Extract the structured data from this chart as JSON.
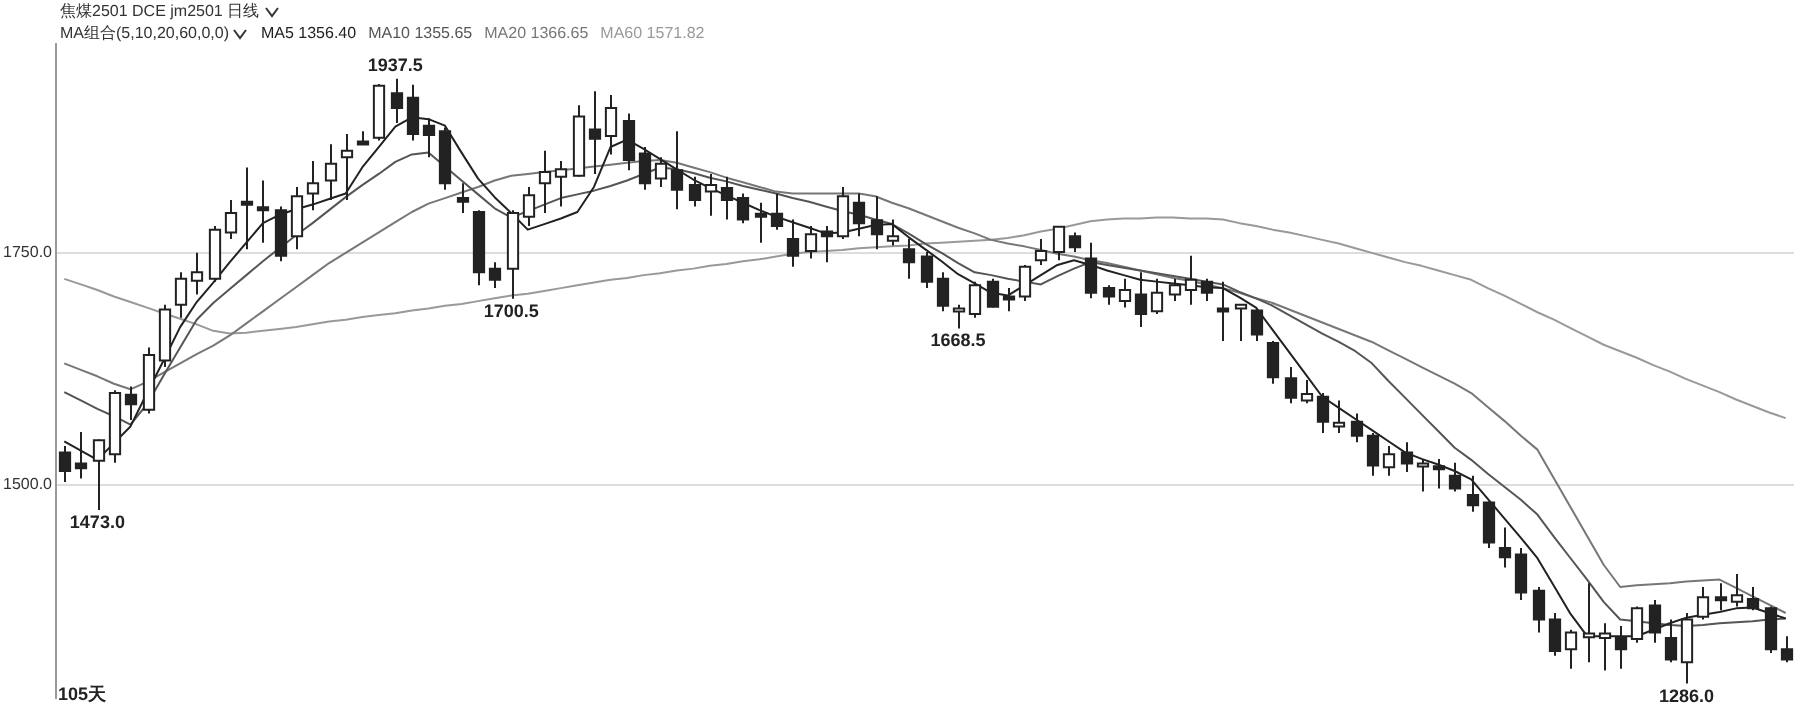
{
  "chart_data": {
    "type": "candlestick",
    "title": "焦煤2501 DCE jm2501 日线",
    "subtitle": "MA组合(5,10,20,60,0,0)",
    "categories": [
      null,
      null,
      null,
      null,
      null,
      null,
      null,
      null,
      null,
      null,
      null,
      null,
      null,
      null,
      null,
      null,
      null,
      null,
      null,
      null,
      null,
      null,
      null,
      null,
      null,
      null,
      null,
      null,
      null,
      null,
      null,
      null,
      null,
      null,
      null,
      null,
      null,
      null,
      null,
      null,
      null,
      null,
      null,
      null,
      null,
      null,
      null,
      null,
      null,
      null,
      null,
      null,
      null,
      null,
      null,
      null,
      null,
      null,
      null,
      null,
      null,
      null,
      null,
      null,
      null,
      null,
      null,
      null,
      null,
      null,
      null,
      null,
      null,
      null,
      null,
      null,
      null,
      null,
      null,
      null,
      null,
      null,
      null,
      null,
      null,
      null,
      null,
      null,
      null,
      null,
      null,
      null,
      null,
      null,
      null,
      null,
      null,
      null,
      null,
      null,
      null,
      null,
      null,
      null,
      null
    ],
    "ohlc": [
      [
        1535,
        1542,
        1503,
        1515
      ],
      [
        1523,
        1557,
        1507,
        1518
      ],
      [
        1526,
        1549,
        1473,
        1548
      ],
      [
        1533,
        1602,
        1524,
        1599
      ],
      [
        1597,
        1606,
        1570,
        1587
      ],
      [
        1581,
        1648,
        1577,
        1640
      ],
      [
        1634,
        1694,
        1627,
        1689
      ],
      [
        1694,
        1729,
        1680,
        1722
      ],
      [
        1720,
        1750,
        1705,
        1729
      ],
      [
        1722,
        1779,
        1719,
        1775
      ],
      [
        1772,
        1807,
        1765,
        1793
      ],
      [
        1805,
        1842,
        1754,
        1802
      ],
      [
        1799,
        1828,
        1761,
        1797
      ],
      [
        1796,
        1800,
        1741,
        1747
      ],
      [
        1768,
        1821,
        1754,
        1811
      ],
      [
        1814,
        1849,
        1796,
        1825
      ],
      [
        1828,
        1867,
        1807,
        1846
      ],
      [
        1853,
        1878,
        1807,
        1860
      ],
      [
        1870,
        1881,
        1867,
        1868
      ],
      [
        1874,
        1932,
        1871,
        1930
      ],
      [
        1922,
        1937.5,
        1890,
        1906
      ],
      [
        1917,
        1931,
        1871,
        1878
      ],
      [
        1887,
        1895,
        1853,
        1877
      ],
      [
        1881,
        1885,
        1818,
        1825
      ],
      [
        1809,
        1825,
        1793,
        1805
      ],
      [
        1794,
        1796,
        1715,
        1729
      ],
      [
        1733,
        1740,
        1712,
        1721
      ],
      [
        1733,
        1796,
        1700.5,
        1793
      ],
      [
        1789,
        1821,
        1779,
        1812
      ],
      [
        1825,
        1860,
        1793,
        1837
      ],
      [
        1832,
        1849,
        1800,
        1840
      ],
      [
        1833,
        1909,
        1832,
        1897
      ],
      [
        1883,
        1924,
        1835,
        1873
      ],
      [
        1876,
        1920,
        1856,
        1906
      ],
      [
        1892,
        1900,
        1839,
        1850
      ],
      [
        1857,
        1864,
        1818,
        1825
      ],
      [
        1830,
        1853,
        1821,
        1846
      ],
      [
        1839,
        1881,
        1797,
        1818
      ],
      [
        1823,
        1832,
        1800,
        1807
      ],
      [
        1816,
        1835,
        1790,
        1823
      ],
      [
        1820,
        1832,
        1786,
        1807
      ],
      [
        1809,
        1814,
        1782,
        1786
      ],
      [
        1792,
        1804,
        1761,
        1789
      ],
      [
        1792,
        1814,
        1775,
        1779
      ],
      [
        1765,
        1786,
        1735,
        1747
      ],
      [
        1752,
        1779,
        1744,
        1770
      ],
      [
        1773,
        1779,
        1740,
        1768
      ],
      [
        1768,
        1821,
        1765,
        1811
      ],
      [
        1804,
        1814,
        1768,
        1782
      ],
      [
        1785,
        1811,
        1754,
        1770
      ],
      [
        1763,
        1786,
        1758,
        1768
      ],
      [
        1754,
        1765,
        1722,
        1740
      ],
      [
        1746,
        1751,
        1712,
        1719
      ],
      [
        1722,
        1729,
        1687,
        1693
      ],
      [
        1687,
        1694,
        1668.5,
        1690
      ],
      [
        1684,
        1719,
        1680,
        1715
      ],
      [
        1719,
        1722,
        1691,
        1692
      ],
      [
        1703,
        1712,
        1687,
        1701
      ],
      [
        1703,
        1737,
        1698,
        1735
      ],
      [
        1742,
        1765,
        1737,
        1752
      ],
      [
        1751,
        1779,
        1742,
        1778
      ],
      [
        1768,
        1772,
        1751,
        1756
      ],
      [
        1744,
        1761,
        1701,
        1707
      ],
      [
        1712,
        1715,
        1694,
        1703
      ],
      [
        1698,
        1722,
        1691,
        1710
      ],
      [
        1705,
        1729,
        1670,
        1684
      ],
      [
        1687,
        1722,
        1684,
        1707
      ],
      [
        1705,
        1722,
        1698,
        1715
      ],
      [
        1710,
        1747,
        1694,
        1721
      ],
      [
        1719,
        1722,
        1698,
        1707
      ],
      [
        1690,
        1719,
        1655,
        1688
      ],
      [
        1690,
        1694,
        1655,
        1694
      ],
      [
        1688,
        1690,
        1655,
        1662
      ],
      [
        1653,
        1655,
        1609,
        1616
      ],
      [
        1615,
        1627,
        1588,
        1594
      ],
      [
        1591,
        1613,
        1588,
        1598
      ],
      [
        1595,
        1599,
        1556,
        1568
      ],
      [
        1563,
        1591,
        1556,
        1567
      ],
      [
        1568,
        1577,
        1546,
        1553
      ],
      [
        1553,
        1556,
        1510,
        1521
      ],
      [
        1519,
        1542,
        1510,
        1533
      ],
      [
        1535,
        1546,
        1514,
        1523
      ],
      [
        1520,
        1528,
        1493,
        1523
      ],
      [
        1520,
        1528,
        1496,
        1517
      ],
      [
        1510,
        1524,
        1493,
        1496
      ],
      [
        1489,
        1510,
        1471,
        1478
      ],
      [
        1481,
        1482,
        1432,
        1438
      ],
      [
        1432,
        1454,
        1411,
        1422
      ],
      [
        1425,
        1432,
        1376,
        1384
      ],
      [
        1386,
        1390,
        1341,
        1355
      ],
      [
        1355,
        1362,
        1316,
        1321
      ],
      [
        1323,
        1344,
        1302,
        1341
      ],
      [
        1336,
        1394,
        1309,
        1340
      ],
      [
        1335,
        1351,
        1300,
        1340
      ],
      [
        1335,
        1348,
        1302,
        1323
      ],
      [
        1334,
        1369,
        1330,
        1367
      ],
      [
        1370,
        1376,
        1330,
        1341
      ],
      [
        1335,
        1355,
        1309,
        1312
      ],
      [
        1309,
        1362,
        1286,
        1355
      ],
      [
        1358,
        1390,
        1355,
        1379
      ],
      [
        1379,
        1394,
        1365,
        1377
      ],
      [
        1374,
        1404,
        1369,
        1381
      ],
      [
        1377,
        1390,
        1365,
        1367
      ],
      [
        1367,
        1369,
        1319,
        1323
      ],
      [
        1323,
        1337,
        1309,
        1312
      ]
    ],
    "series": [
      {
        "name": "MA5 1356.40",
        "type": "line",
        "color": "#222222",
        "values": [
          1547,
          1537,
          1527,
          1545,
          1563,
          1599,
          1634,
          1670,
          1697,
          1718,
          1740,
          1761,
          1782,
          1791,
          1797,
          1802,
          1808,
          1814,
          1842,
          1864,
          1886,
          1896,
          1894,
          1887,
          1858,
          1830,
          1810,
          1793,
          1775,
          1781,
          1787,
          1794,
          1821,
          1864,
          1872,
          1862,
          1851,
          1840,
          1829,
          1820,
          1812,
          1804,
          1796,
          1789,
          1783,
          1777,
          1771,
          1772,
          1776,
          1780,
          1781,
          1767,
          1754,
          1741,
          1727,
          1717,
          1707,
          1704,
          1715,
          1726,
          1737,
          1742,
          1737,
          1731,
          1726,
          1721,
          1719,
          1717,
          1715,
          1713,
          1712,
          1702,
          1691,
          1667,
          1643,
          1619,
          1595,
          1583,
          1571,
          1559,
          1547,
          1535,
          1528,
          1522,
          1515,
          1506,
          1485,
          1464,
          1443,
          1421,
          1391,
          1361,
          1337,
          1337,
          1337,
          1337,
          1344,
          1351,
          1357,
          1360,
          1363,
          1367,
          1368,
          1362,
          1356
        ]
      },
      {
        "name": "MA10 1355.65",
        "type": "line",
        "color": "#555555",
        "values": [
          1600,
          1591,
          1582,
          1574,
          1565,
          1587,
          1618,
          1648,
          1678,
          1696,
          1711,
          1726,
          1741,
          1755,
          1769,
          1782,
          1796,
          1810,
          1823,
          1835,
          1848,
          1856,
          1858,
          1843,
          1828,
          1813,
          1798,
          1788,
          1795,
          1802,
          1809,
          1813,
          1817,
          1822,
          1828,
          1835,
          1842,
          1840,
          1836,
          1831,
          1827,
          1822,
          1818,
          1814,
          1809,
          1805,
          1800,
          1795,
          1791,
          1786,
          1781,
          1771,
          1760,
          1750,
          1739,
          1729,
          1726,
          1722,
          1719,
          1716,
          1725,
          1733,
          1740,
          1737,
          1734,
          1731,
          1728,
          1725,
          1722,
          1719,
          1716,
          1708,
          1701,
          1693,
          1683,
          1673,
          1663,
          1654,
          1644,
          1631,
          1612,
          1594,
          1576,
          1558,
          1540,
          1527,
          1512,
          1498,
          1484,
          1468,
          1444,
          1421,
          1398,
          1374,
          1355,
          1353,
          1351,
          1349,
          1348,
          1349,
          1351,
          1352,
          1353,
          1355,
          1356
        ]
      },
      {
        "name": "MA20 1366.65",
        "type": "line",
        "color": "#777777",
        "values": [
          1631,
          1624,
          1617,
          1609,
          1603,
          1611,
          1621,
          1631,
          1641,
          1650,
          1661,
          1674,
          1687,
          1700,
          1713,
          1726,
          1739,
          1750,
          1761,
          1772,
          1783,
          1794,
          1803,
          1809,
          1815,
          1821,
          1828,
          1833,
          1835,
          1837,
          1839,
          1841,
          1843,
          1845,
          1847,
          1849,
          1850,
          1847,
          1842,
          1837,
          1831,
          1826,
          1821,
          1816,
          1814,
          1814,
          1814,
          1814,
          1814,
          1811,
          1804,
          1798,
          1791,
          1784,
          1777,
          1771,
          1764,
          1760,
          1757,
          1753,
          1749,
          1746,
          1742,
          1739,
          1735,
          1731,
          1727,
          1723,
          1720,
          1716,
          1712,
          1707,
          1701,
          1696,
          1689,
          1682,
          1675,
          1668,
          1661,
          1654,
          1645,
          1636,
          1627,
          1618,
          1609,
          1599,
          1584,
          1569,
          1553,
          1538,
          1507,
          1476,
          1445,
          1414,
          1390,
          1392,
          1393,
          1394,
          1396,
          1397,
          1398,
          1389,
          1380,
          1371,
          1362
        ]
      },
      {
        "name": "MA60 1571.82",
        "type": "line",
        "color": "#999999",
        "values": [
          1722,
          1716,
          1710,
          1703,
          1697,
          1691,
          1685,
          1679,
          1673,
          1666,
          1663,
          1664,
          1666,
          1668,
          1670,
          1673,
          1676,
          1678,
          1681,
          1683,
          1685,
          1688,
          1690,
          1693,
          1695,
          1698,
          1701,
          1704,
          1706,
          1709,
          1712,
          1715,
          1718,
          1721,
          1723,
          1726,
          1728,
          1731,
          1733,
          1736,
          1738,
          1741,
          1743,
          1746,
          1749,
          1751,
          1752,
          1753,
          1755,
          1756,
          1757,
          1758,
          1760,
          1761,
          1762,
          1763,
          1764,
          1766,
          1769,
          1773,
          1776,
          1780,
          1784,
          1786,
          1787,
          1787,
          1788,
          1788,
          1787,
          1787,
          1786,
          1782,
          1779,
          1775,
          1772,
          1768,
          1764,
          1760,
          1755,
          1750,
          1745,
          1740,
          1736,
          1731,
          1726,
          1721,
          1712,
          1704,
          1695,
          1686,
          1678,
          1669,
          1660,
          1651,
          1644,
          1637,
          1629,
          1622,
          1614,
          1607,
          1600,
          1592,
          1585,
          1578,
          1572
        ]
      }
    ],
    "ylim": [
      1270,
      1975
    ],
    "yticks": [
      {
        "value": 1500,
        "label": "1500.0"
      },
      {
        "value": 1750,
        "label": "1750.0"
      }
    ],
    "tick_labels": "y",
    "grid": "y",
    "legend": "top left",
    "marker": "none",
    "annotations": [
      {
        "text": "1937.5",
        "y": 1937.5
      },
      {
        "text": "1473.0",
        "y": 1473
      },
      {
        "text": "1700.5",
        "y": 1700.5
      },
      {
        "text": "1668.5",
        "y": 1668.5
      },
      {
        "text": "1286.0",
        "y": 1286
      },
      "105天"
    ]
  }
}
